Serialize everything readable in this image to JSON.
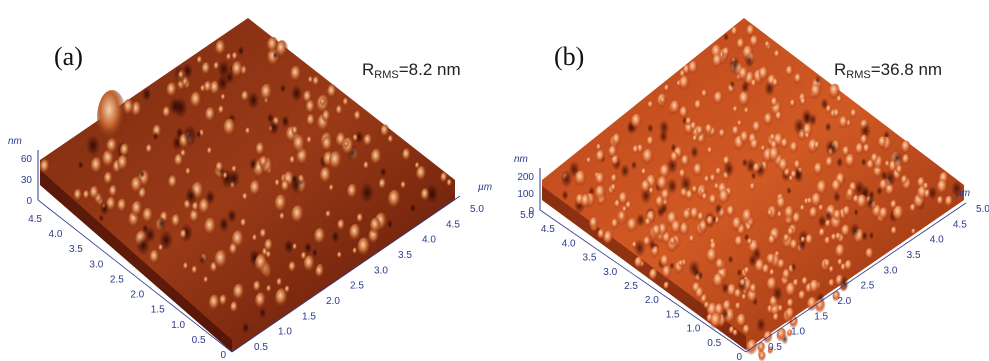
{
  "panels": [
    {
      "label": "(a)",
      "rms_prefix": "R",
      "rms_sub": "RMS",
      "rms_value": "=8.2 nm",
      "z_unit": "nm",
      "z_ticks": [
        "60",
        "30",
        "0"
      ],
      "xy_unit": "µm",
      "left_ticks": [
        "4.5",
        "4.0",
        "3.5",
        "3.0",
        "2.5",
        "2.0",
        "1.5",
        "1.0",
        "0.5",
        "0"
      ],
      "right_ticks": [
        "0.5",
        "1.0",
        "1.5",
        "2.0",
        "2.5",
        "3.0",
        "3.5",
        "4.0",
        "4.5",
        "5.0"
      ],
      "colors": {
        "dark": "#3a0904",
        "mid": "#8e2c0f",
        "light": "#f3c7a0"
      }
    },
    {
      "label": "(b)",
      "rms_prefix": "R",
      "rms_sub": "RMS",
      "rms_value": "=36.8 nm",
      "z_unit": "nm",
      "z_ticks": [
        "200",
        "100",
        "0"
      ],
      "xy_unit": "µm",
      "left_ticks": [
        "5.0",
        "4.5",
        "4.0",
        "3.5",
        "3.0",
        "2.5",
        "2.0",
        "1.5",
        "1.0",
        "0.5",
        "0"
      ],
      "right_ticks": [
        "0.5",
        "1.0",
        "1.5",
        "2.0",
        "2.5",
        "3.0",
        "3.5",
        "4.0",
        "4.5",
        "5.0"
      ],
      "colors": {
        "dark": "#5a1405",
        "mid": "#c4481a",
        "light": "#f7c49a"
      }
    }
  ]
}
